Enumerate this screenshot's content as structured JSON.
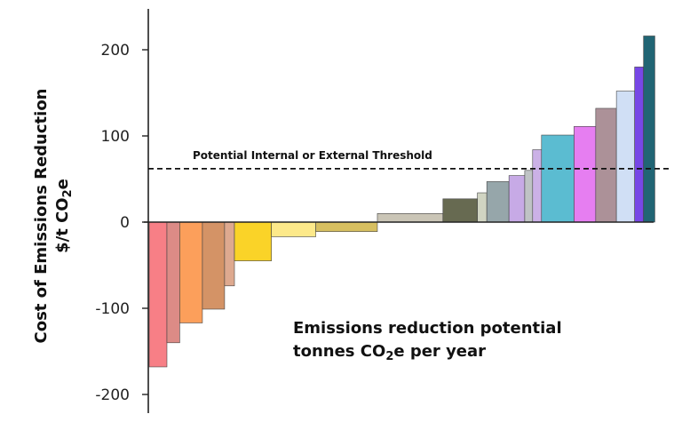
{
  "chart_data": {
    "type": "bar",
    "subtype": "marginal-abatement-cost-curve",
    "ylabel_line1": "Cost of Emissions Reduction",
    "ylabel_line2_pre": "$/t CO",
    "ylabel_line2_sub": "2",
    "ylabel_line2_post": "e",
    "annotation_line1": "Emissions reduction potential",
    "annotation_line2_pre": "tonnes CO",
    "annotation_line2_sub": "2",
    "annotation_line2_post": "e per year",
    "threshold": {
      "value": 62,
      "label": "Potential Internal or External Threshold"
    },
    "ylim": [
      -225,
      235
    ],
    "yticks": [
      200,
      100,
      0,
      -100,
      -200
    ],
    "ytick_labels": [
      "200",
      "100",
      "0",
      "-100",
      "-200"
    ],
    "xlim": [
      0,
      100
    ],
    "bars": [
      {
        "x0": 0.0,
        "x1": 3.6,
        "value": -168,
        "color": "#f77f86"
      },
      {
        "x0": 3.6,
        "x1": 6.2,
        "value": -140,
        "color": "#dc8b86"
      },
      {
        "x0": 6.2,
        "x1": 10.8,
        "value": -117,
        "color": "#fc9f5b"
      },
      {
        "x0": 10.8,
        "x1": 15.3,
        "value": -101,
        "color": "#d49366"
      },
      {
        "x0": 15.3,
        "x1": 17.3,
        "value": -74,
        "color": "#dea98f"
      },
      {
        "x0": 17.3,
        "x1": 24.8,
        "value": -45,
        "color": "#fad328"
      },
      {
        "x0": 24.8,
        "x1": 33.8,
        "value": -17,
        "color": "#fde98a"
      },
      {
        "x0": 33.8,
        "x1": 46.3,
        "value": -11,
        "color": "#d7bf60"
      },
      {
        "x0": 46.3,
        "x1": 59.6,
        "value": 10,
        "color": "#cac5b6"
      },
      {
        "x0": 59.6,
        "x1": 66.6,
        "value": 27,
        "color": "#676a51"
      },
      {
        "x0": 66.6,
        "x1": 68.5,
        "value": 34,
        "color": "#d0d4c2"
      },
      {
        "x0": 68.5,
        "x1": 73.0,
        "value": 47,
        "color": "#96a6aa"
      },
      {
        "x0": 73.0,
        "x1": 76.2,
        "value": 54,
        "color": "#c7aae6"
      },
      {
        "x0": 76.2,
        "x1": 77.8,
        "value": 60,
        "color": "#bfc3c5"
      },
      {
        "x0": 77.8,
        "x1": 79.6,
        "value": 84,
        "color": "#cbb1e6"
      },
      {
        "x0": 79.6,
        "x1": 86.2,
        "value": 101,
        "color": "#5bbcd1"
      },
      {
        "x0": 86.2,
        "x1": 90.6,
        "value": 111,
        "color": "#e67ef1"
      },
      {
        "x0": 90.6,
        "x1": 94.8,
        "value": 132,
        "color": "#ac9198"
      },
      {
        "x0": 94.8,
        "x1": 98.5,
        "value": 152,
        "color": "#d0dff5"
      },
      {
        "x0": 98.5,
        "x1": 100.3,
        "value": 180,
        "color": "#7747e6"
      },
      {
        "x0": 100.3,
        "x1": 102.6,
        "value": 216,
        "color": "#216574"
      }
    ]
  }
}
